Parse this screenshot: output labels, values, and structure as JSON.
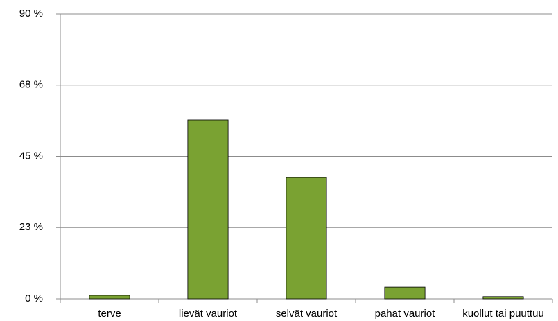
{
  "chart_data": {
    "type": "bar",
    "categories": [
      "terve",
      "lievät vauriot",
      "selvät vauriot",
      "pahat vauriot",
      "kuollut tai puuttuu"
    ],
    "values": [
      1.1,
      56.5,
      38.3,
      3.7,
      0.7
    ],
    "color": "#7aa232",
    "ylim": [
      0,
      90
    ],
    "yticks": [
      {
        "value": 0,
        "label": "0 %"
      },
      {
        "value": 22.5,
        "label": "23 %"
      },
      {
        "value": 45,
        "label": "45 %"
      },
      {
        "value": 67.5,
        "label": "68 %"
      },
      {
        "value": 90,
        "label": "90 %"
      }
    ],
    "grid": true
  }
}
